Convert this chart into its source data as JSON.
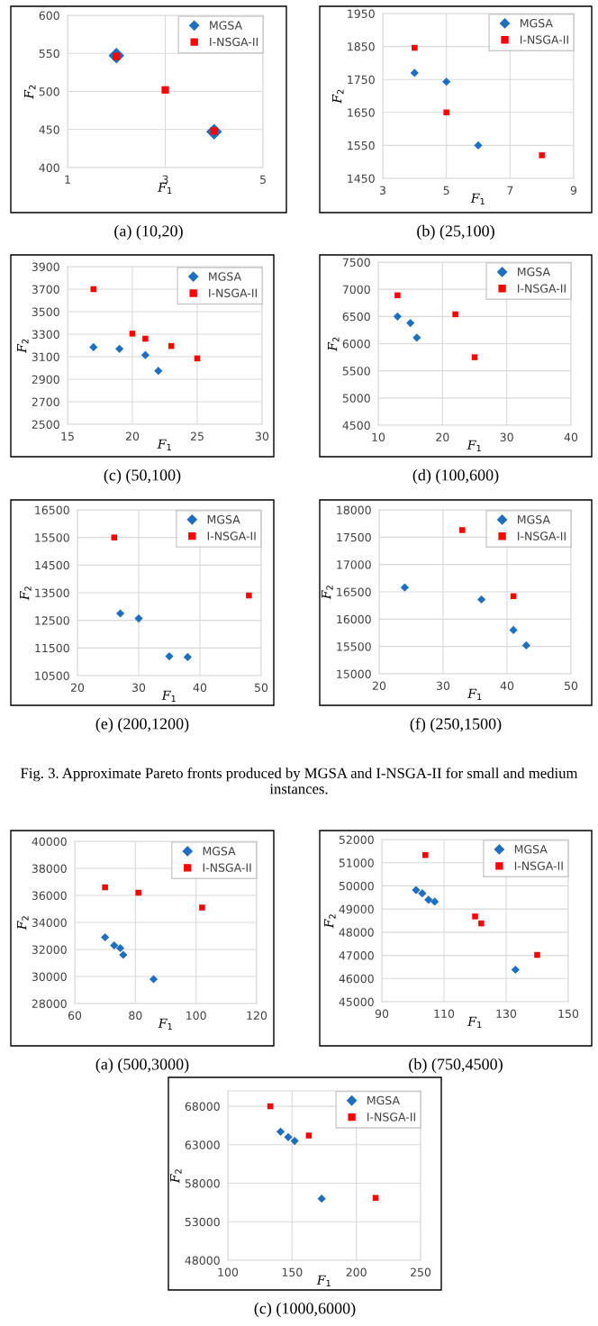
{
  "chart_data": [
    {
      "type": "scatter",
      "title": "(a) (10,20)",
      "xlabel": "F$_{1}$",
      "ylabel": "F$_{2}$",
      "xlim": [
        1,
        5
      ],
      "xticks": [
        1,
        3,
        5
      ],
      "ylim": [
        400,
        600
      ],
      "yticks": [
        400,
        450,
        500,
        550,
        600
      ],
      "grid": true,
      "legend": "top right",
      "series": [
        {
          "name": "MGSA",
          "color": "#1f6fc0",
          "marker": "diamond",
          "x": [
            2,
            4
          ],
          "values": [
            547,
            447
          ]
        },
        {
          "name": "I-NSGA-II",
          "color": "#ff0000",
          "marker": "square",
          "x": [
            2,
            3,
            4
          ],
          "values": [
            546,
            502,
            448
          ]
        }
      ]
    },
    {
      "type": "scatter",
      "title": "(b) (25,100)",
      "xlabel": "F$_{1}$",
      "ylabel": "F$_{2}$",
      "xlim": [
        3,
        9
      ],
      "xticks": [
        3,
        5,
        7,
        9
      ],
      "ylim": [
        1450,
        1950
      ],
      "yticks": [
        1450,
        1550,
        1650,
        1750,
        1850,
        1950
      ],
      "grid": true,
      "legend": "top right",
      "series": [
        {
          "name": "MGSA",
          "color": "#1f6fc0",
          "marker": "diamond",
          "x": [
            4,
            5,
            6
          ],
          "values": [
            1770,
            1743,
            1550
          ]
        },
        {
          "name": "I-NSGA-II",
          "color": "#ff0000",
          "marker": "square",
          "x": [
            4,
            5,
            8
          ],
          "values": [
            1846,
            1650,
            1520
          ]
        }
      ]
    },
    {
      "type": "scatter",
      "title": "(c) (50,100)",
      "xlabel": "F$_{1}$",
      "ylabel": "F$_{2}$",
      "xlim": [
        15,
        30
      ],
      "xticks": [
        15,
        20,
        25,
        30
      ],
      "ylim": [
        2500,
        3900
      ],
      "yticks": [
        2500,
        2700,
        2900,
        3100,
        3300,
        3500,
        3700,
        3900
      ],
      "grid": true,
      "legend": "top right",
      "series": [
        {
          "name": "MGSA",
          "color": "#1f6fc0",
          "marker": "diamond",
          "x": [
            17,
            19,
            21,
            22
          ],
          "values": [
            3185,
            3170,
            3115,
            2975
          ]
        },
        {
          "name": "I-NSGA-II",
          "color": "#ff0000",
          "marker": "square",
          "x": [
            17,
            20,
            21,
            23,
            25
          ],
          "values": [
            3700,
            3305,
            3260,
            3195,
            3085
          ]
        }
      ]
    },
    {
      "type": "scatter",
      "title": "(d) (100,600)",
      "xlabel": "F$_{1}$",
      "ylabel": "F$_{2}$",
      "xlim": [
        10,
        40
      ],
      "xticks": [
        10,
        20,
        30,
        40
      ],
      "ylim": [
        4500,
        7500
      ],
      "yticks": [
        4500,
        5000,
        5500,
        6000,
        6500,
        7000,
        7500
      ],
      "grid": true,
      "legend": "top right",
      "series": [
        {
          "name": "MGSA",
          "color": "#1f6fc0",
          "marker": "diamond",
          "x": [
            13,
            15,
            16
          ],
          "values": [
            6500,
            6380,
            6110
          ]
        },
        {
          "name": "I-NSGA-II",
          "color": "#ff0000",
          "marker": "square",
          "x": [
            13,
            22,
            25
          ],
          "values": [
            6890,
            6540,
            5750
          ]
        }
      ]
    },
    {
      "type": "scatter",
      "title": "(e) (200,1200)",
      "xlabel": "F$_{1}$",
      "ylabel": "F$_{2}$",
      "xlim": [
        20,
        50
      ],
      "xticks": [
        20,
        30,
        40,
        50
      ],
      "ylim": [
        10500,
        16500
      ],
      "yticks": [
        10500,
        11500,
        12500,
        13500,
        14500,
        15500,
        16500
      ],
      "grid": true,
      "legend": "top right",
      "series": [
        {
          "name": "MGSA",
          "color": "#1f6fc0",
          "marker": "diamond",
          "x": [
            27,
            30,
            35,
            38
          ],
          "values": [
            12750,
            12570,
            11200,
            11170
          ]
        },
        {
          "name": "I-NSGA-II",
          "color": "#ff0000",
          "marker": "square",
          "x": [
            26,
            48
          ],
          "values": [
            15500,
            13400
          ]
        }
      ]
    },
    {
      "type": "scatter",
      "title": "(f) (250,1500)",
      "xlabel": "F$_{1}$",
      "ylabel": "F$_{2}$",
      "xlim": [
        20,
        50
      ],
      "xticks": [
        20,
        30,
        40,
        50
      ],
      "ylim": [
        15000,
        18000
      ],
      "yticks": [
        15000,
        15500,
        16000,
        16500,
        17000,
        17500,
        18000
      ],
      "grid": true,
      "legend": "top right",
      "annotations": [
        "Fig. 3. Approximate Pareto fronts produced by MGSA and I-NSGA-II for small and medium instances."
      ],
      "series": [
        {
          "name": "MGSA",
          "color": "#1f6fc0",
          "marker": "diamond",
          "x": [
            24,
            36,
            41,
            43
          ],
          "values": [
            16580,
            16360,
            15800,
            15520
          ]
        },
        {
          "name": "I-NSGA-II",
          "color": "#ff0000",
          "marker": "square",
          "x": [
            33,
            41
          ],
          "values": [
            17630,
            16420
          ]
        }
      ]
    },
    {
      "type": "scatter",
      "title": "(a) (500,3000)",
      "xlabel": "F$_{1}$",
      "ylabel": "F$_{2}$",
      "xlim": [
        60,
        120
      ],
      "xticks": [
        60,
        80,
        100,
        120
      ],
      "ylim": [
        28000,
        40000
      ],
      "yticks": [
        28000,
        30000,
        32000,
        34000,
        36000,
        38000,
        40000
      ],
      "grid": true,
      "legend": "top right",
      "series": [
        {
          "name": "MGSA",
          "color": "#1f6fc0",
          "marker": "diamond",
          "x": [
            70,
            73,
            75,
            76,
            86
          ],
          "values": [
            32900,
            32300,
            32100,
            31600,
            29800
          ]
        },
        {
          "name": "I-NSGA-II",
          "color": "#ff0000",
          "marker": "square",
          "x": [
            70,
            81,
            102
          ],
          "values": [
            36600,
            36200,
            35100
          ]
        }
      ]
    },
    {
      "type": "scatter",
      "title": "(b) (750,4500)",
      "xlabel": "F$_{1}$",
      "ylabel": "F$_{2}$",
      "xlim": [
        90,
        150
      ],
      "xticks": [
        90,
        110,
        130,
        150
      ],
      "ylim": [
        45000,
        52000
      ],
      "yticks": [
        45000,
        46000,
        47000,
        48000,
        49000,
        50000,
        51000,
        52000
      ],
      "grid": true,
      "legend": "top right",
      "series": [
        {
          "name": "MGSA",
          "color": "#1f6fc0",
          "marker": "diamond",
          "x": [
            101,
            103,
            105,
            107,
            133
          ],
          "values": [
            49820,
            49680,
            49400,
            49320,
            46380
          ]
        },
        {
          "name": "I-NSGA-II",
          "color": "#ff0000",
          "marker": "square",
          "x": [
            104,
            120,
            122,
            140
          ],
          "values": [
            51330,
            48680,
            48380,
            47020
          ]
        }
      ]
    },
    {
      "type": "scatter",
      "title": "(c) (1000,6000)",
      "xlabel": "F$_{1}$",
      "ylabel": "F$_{2}$",
      "xlim": [
        100,
        250
      ],
      "xticks": [
        100,
        150,
        200,
        250
      ],
      "ylim": [
        48000,
        70000
      ],
      "yticks": [
        48000,
        53000,
        58000,
        63000,
        68000
      ],
      "grid": true,
      "legend": "top right",
      "series": [
        {
          "name": "MGSA",
          "color": "#1f6fc0",
          "marker": "diamond",
          "x": [
            141,
            147,
            152,
            173
          ],
          "values": [
            64700,
            64000,
            63500,
            56000
          ]
        },
        {
          "name": "I-NSGA-II",
          "color": "#ff0000",
          "marker": "square",
          "x": [
            133,
            163,
            215
          ],
          "values": [
            68000,
            64200,
            56100
          ]
        }
      ]
    }
  ]
}
